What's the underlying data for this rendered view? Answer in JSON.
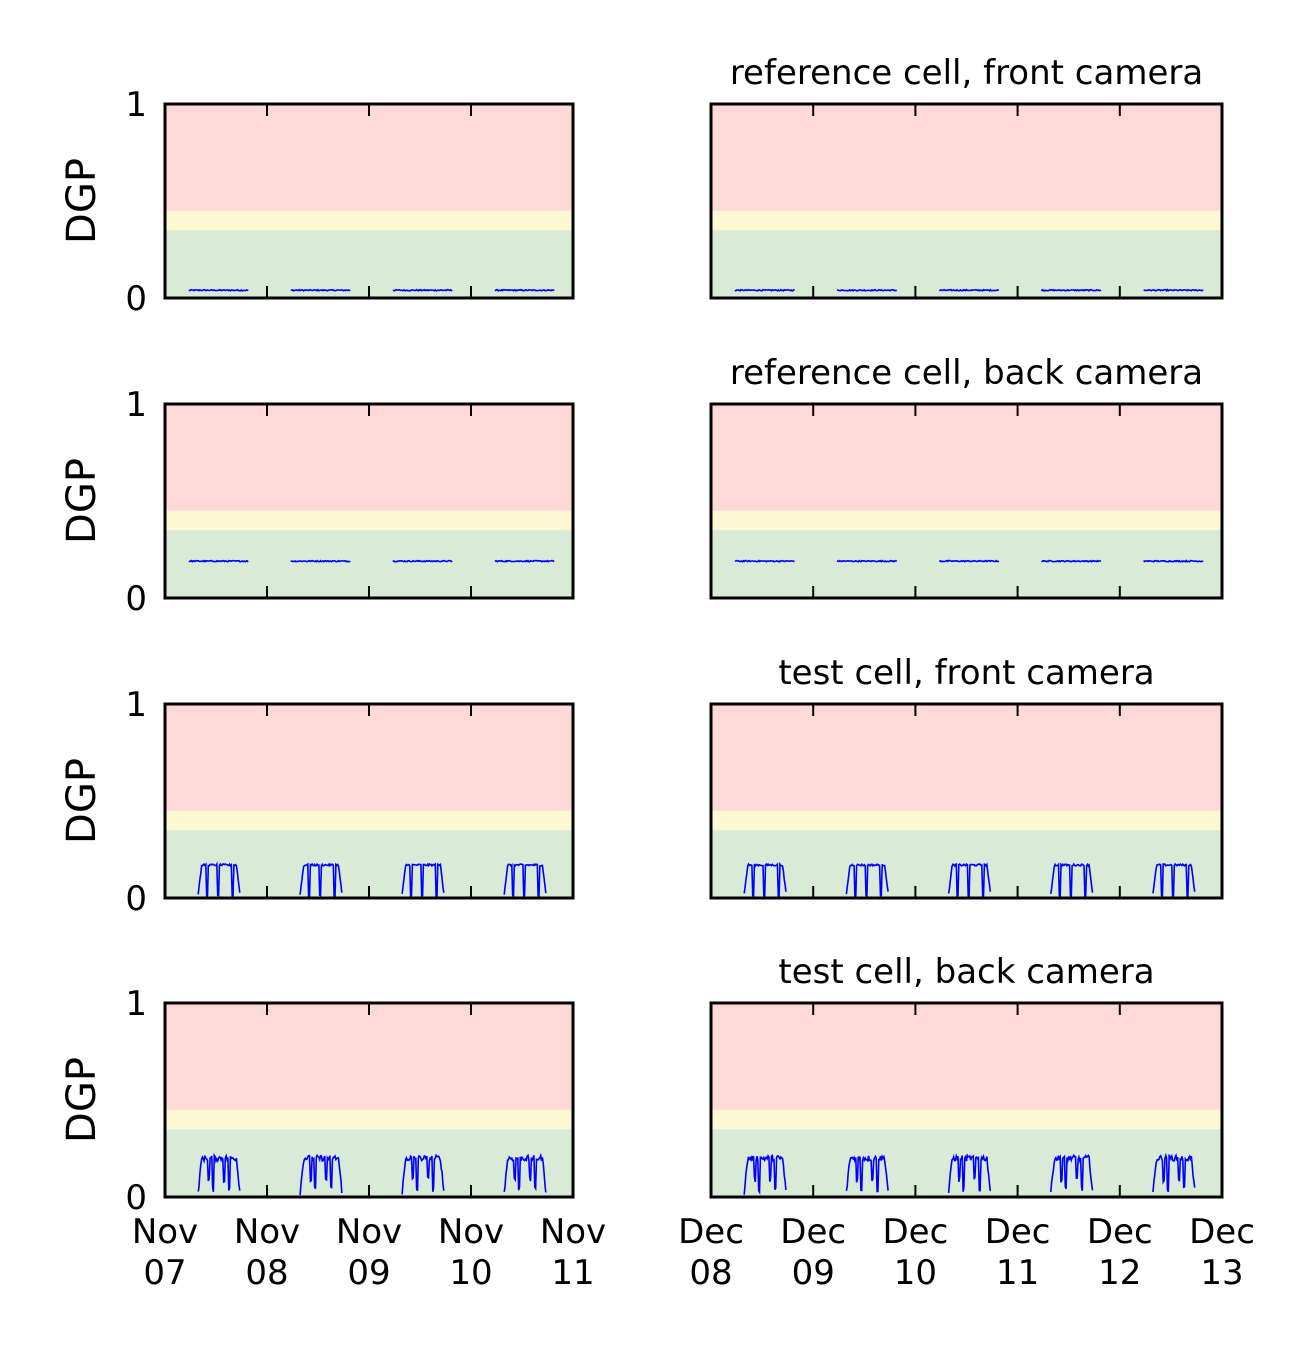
{
  "chart_data": {
    "type": "line",
    "ylabel": "DGP",
    "ylim": [
      0,
      1
    ],
    "y_ticks": [
      "0",
      "1"
    ],
    "bands": [
      {
        "from": 0,
        "to": 0.35,
        "color": "#d9ead7"
      },
      {
        "from": 0.35,
        "to": 0.45,
        "color": "#fdf8d2"
      },
      {
        "from": 0.45,
        "to": 1,
        "color": "#ffd8d8"
      }
    ],
    "line_color": "#0000ff",
    "columns": [
      {
        "xlim": [
          "2015-11-07",
          "2015-11-11"
        ],
        "x_ticks": [
          {
            "month": "Nov",
            "day": "07"
          },
          {
            "month": "Nov",
            "day": "08"
          },
          {
            "month": "Nov",
            "day": "09"
          },
          {
            "month": "Nov",
            "day": "10"
          },
          {
            "month": "Nov",
            "day": "11"
          }
        ]
      },
      {
        "xlim": [
          "2015-12-08",
          "2015-12-13"
        ],
        "x_ticks": [
          {
            "month": "Dec",
            "day": "08"
          },
          {
            "month": "Dec",
            "day": "09"
          },
          {
            "month": "Dec",
            "day": "10"
          },
          {
            "month": "Dec",
            "day": "11"
          },
          {
            "month": "Dec",
            "day": "12"
          },
          {
            "month": "Dec",
            "day": "13"
          }
        ]
      }
    ],
    "rows": [
      {
        "title": "reference cell, front camera",
        "daily_profile": "flat",
        "level": 0.04
      },
      {
        "title": "reference cell, back camera",
        "daily_profile": "flat",
        "level": 0.19
      },
      {
        "title": "test cell, front camera",
        "daily_profile": "variable",
        "level": 0.17
      },
      {
        "title": "test cell, back camera",
        "daily_profile": "variable",
        "level": 0.2
      }
    ]
  }
}
